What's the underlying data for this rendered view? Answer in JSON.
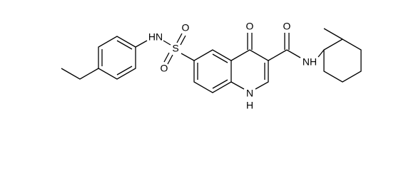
{
  "atoms": [
    {
      "label": "HN"
    },
    {
      "label": "S"
    },
    {
      "label": "O"
    },
    {
      "label": "O"
    },
    {
      "label": "O"
    },
    {
      "label": "O"
    },
    {
      "label": "NH"
    },
    {
      "label": "N"
    },
    {
      "label": "H"
    }
  ]
}
